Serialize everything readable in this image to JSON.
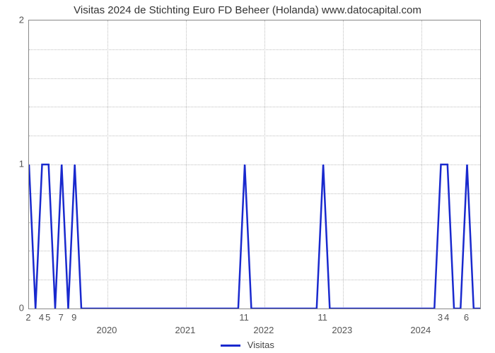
{
  "chart": {
    "type": "line",
    "title": "Visitas 2024 de Stichting Euro FD Beheer (Holanda) www.datocapital.com",
    "title_fontsize": 15,
    "background_color": "#ffffff",
    "grid_color": "#bfbfbf",
    "border_color": "#888888",
    "line_color": "#1929ce",
    "line_width": 2.5,
    "ylim": [
      0,
      2
    ],
    "yticks": [
      0,
      1,
      2
    ],
    "ytick_fontsize": 13,
    "y_minor_count": 4,
    "x_points_total": 70,
    "x_year_ticks": [
      {
        "pos": 12,
        "label": "2020"
      },
      {
        "pos": 24,
        "label": "2021"
      },
      {
        "pos": 36,
        "label": "2022"
      },
      {
        "pos": 48,
        "label": "2023"
      },
      {
        "pos": 60,
        "label": "2024"
      }
    ],
    "x_minor_ticks": [
      {
        "pos": 0,
        "label": "2"
      },
      {
        "pos": 2,
        "label": "4"
      },
      {
        "pos": 3,
        "label": "5"
      },
      {
        "pos": 5,
        "label": "7"
      },
      {
        "pos": 7,
        "label": "9"
      },
      {
        "pos": 33,
        "label": "11"
      },
      {
        "pos": 45,
        "label": "11"
      },
      {
        "pos": 63,
        "label": "3"
      },
      {
        "pos": 64,
        "label": "4"
      },
      {
        "pos": 67,
        "label": "6"
      }
    ],
    "series": {
      "name": "Visitas",
      "values": [
        1,
        0,
        1,
        1,
        0,
        1,
        0,
        1,
        0,
        0,
        0,
        0,
        0,
        0,
        0,
        0,
        0,
        0,
        0,
        0,
        0,
        0,
        0,
        0,
        0,
        0,
        0,
        0,
        0,
        0,
        0,
        0,
        0,
        1,
        0,
        0,
        0,
        0,
        0,
        0,
        0,
        0,
        0,
        0,
        0,
        1,
        0,
        0,
        0,
        0,
        0,
        0,
        0,
        0,
        0,
        0,
        0,
        0,
        0,
        0,
        0,
        0,
        0,
        1,
        1,
        0,
        0,
        1,
        0,
        0
      ]
    },
    "legend_label": "Visitas",
    "legend_fontsize": 13
  }
}
